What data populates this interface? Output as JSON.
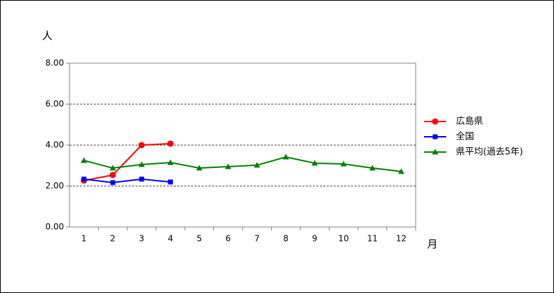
{
  "chart_data": {
    "type": "line",
    "y_label": "人",
    "x_label": "月",
    "categories": [
      "1",
      "2",
      "3",
      "4",
      "5",
      "6",
      "7",
      "8",
      "9",
      "10",
      "11",
      "12"
    ],
    "series": [
      {
        "name": "広島県",
        "color": "#ff0000",
        "marker": "circle",
        "values": [
          2.27,
          2.54,
          4.0,
          4.07,
          null,
          null,
          null,
          null,
          null,
          null,
          null,
          null
        ]
      },
      {
        "name": "全国",
        "color": "#0000ff",
        "marker": "square",
        "values": [
          2.34,
          2.17,
          2.34,
          2.2,
          null,
          null,
          null,
          null,
          null,
          null,
          null,
          null
        ]
      },
      {
        "name": "県平均(過去5年)",
        "color": "#008000",
        "marker": "triangle",
        "values": [
          3.25,
          2.88,
          3.05,
          3.15,
          2.88,
          2.95,
          3.02,
          3.42,
          3.12,
          3.08,
          2.88,
          2.71
        ]
      }
    ],
    "ylim": [
      0,
      8
    ],
    "yticks": [
      {
        "value": 0,
        "label": "0.00"
      },
      {
        "value": 2,
        "label": "2.00"
      },
      {
        "value": 4,
        "label": "4.00"
      },
      {
        "value": 6,
        "label": "6.00"
      },
      {
        "value": 8,
        "label": "8.00"
      }
    ],
    "grid": true,
    "legend": "right"
  }
}
